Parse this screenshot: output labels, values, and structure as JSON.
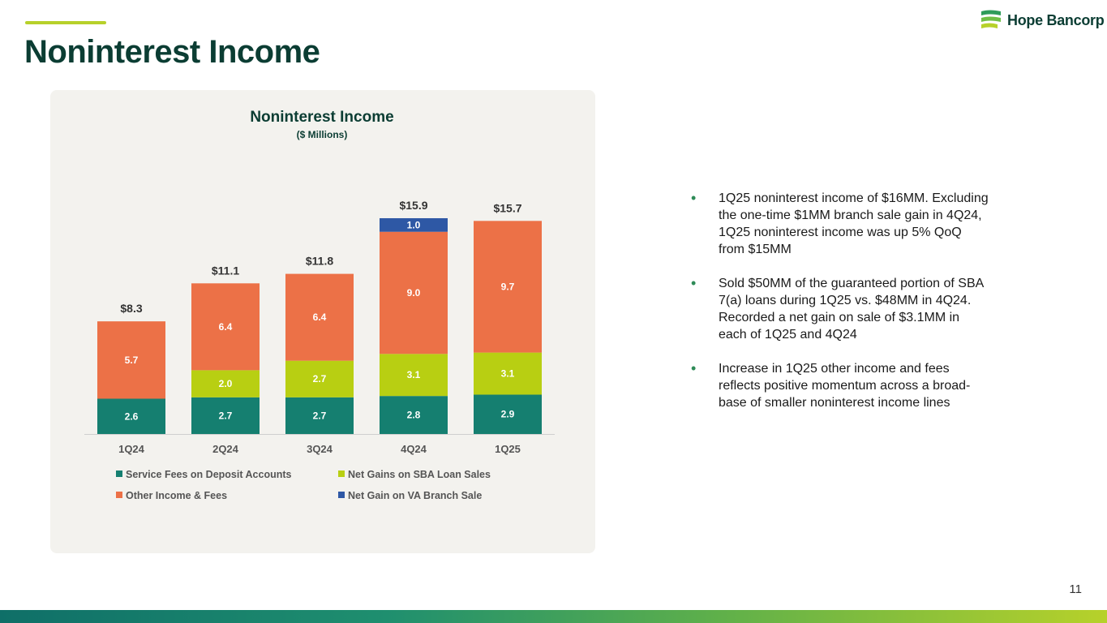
{
  "page": {
    "title": "Noninterest Income",
    "page_number": "11",
    "logo_text": "Hope Bancorp"
  },
  "chart_data": {
    "type": "bar",
    "stacked": true,
    "title": "Noninterest Income",
    "subtitle": "($ Millions)",
    "categories": [
      "1Q24",
      "2Q24",
      "3Q24",
      "4Q24",
      "1Q25"
    ],
    "series": [
      {
        "name": "Service Fees on Deposit Accounts",
        "color": "#157f70",
        "values": [
          2.6,
          2.7,
          2.7,
          2.8,
          2.9
        ],
        "labels": [
          "2.6",
          "2.7",
          "2.7",
          "2.8",
          "2.9"
        ]
      },
      {
        "name": "Net Gains on SBA Loan Sales",
        "color": "#b8cf12",
        "values": [
          0,
          2.0,
          2.7,
          3.1,
          3.1
        ],
        "labels": [
          "",
          "2.0",
          "2.7",
          "3.1",
          "3.1"
        ]
      },
      {
        "name": "Other Income & Fees",
        "color": "#ec7147",
        "values": [
          5.7,
          6.4,
          6.4,
          9.0,
          9.7
        ],
        "labels": [
          "5.7",
          "6.4",
          "6.4",
          "9.0",
          "9.7"
        ]
      },
      {
        "name": "Net Gain on VA Branch Sale",
        "color": "#2e58a5",
        "values": [
          0,
          0,
          0,
          1.0,
          0
        ],
        "labels": [
          "",
          "",
          "",
          "1.0",
          ""
        ]
      }
    ],
    "totals": [
      "$8.3",
      "$11.1",
      "$11.8",
      "$15.9",
      "$15.7"
    ],
    "ylim": [
      0,
      17
    ],
    "grid": false,
    "legend_position": "bottom"
  },
  "bullets": [
    "1Q25 noninterest income of $16MM. Excluding the one-time $1MM branch sale gain in 4Q24, 1Q25 noninterest income was up 5% QoQ from $15MM",
    "Sold $50MM of the guaranteed portion of SBA 7(a) loans during 1Q25 vs. $48MM in 4Q24. Recorded a net gain on sale of $3.1MM in each of 1Q25 and 4Q24",
    "Increase in 1Q25 other income and fees reflects positive momentum across a broad-base of smaller noninterest income lines"
  ]
}
